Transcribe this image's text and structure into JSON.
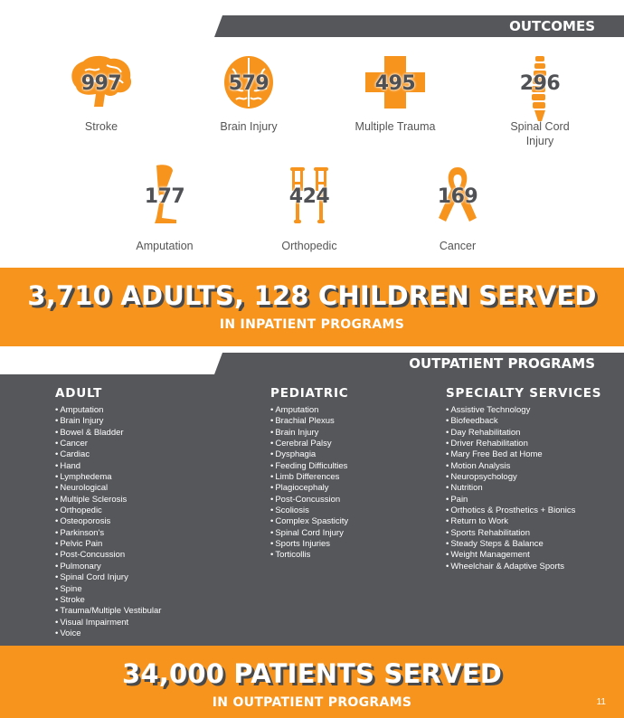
{
  "outcomes_header": "OUTCOMES",
  "outcomes": [
    {
      "number": "997",
      "label": "Stroke",
      "icon": "brain-side-icon"
    },
    {
      "number": "579",
      "label": "Brain Injury",
      "icon": "brain-top-icon"
    },
    {
      "number": "495",
      "label": "Multiple Trauma",
      "icon": "medical-cross-icon"
    },
    {
      "number": "296",
      "label": "Spinal Cord\nInjury",
      "icon": "spine-icon"
    },
    {
      "number": "177",
      "label": "Amputation",
      "icon": "prosthetic-leg-icon"
    },
    {
      "number": "424",
      "label": "Orthopedic",
      "icon": "crutches-icon"
    },
    {
      "number": "169",
      "label": "Cancer",
      "icon": "cancer-ribbon-icon"
    }
  ],
  "inpatient": {
    "headline": "3,710 ADULTS, 128 CHILDREN SERVED",
    "sub": "IN INPATIENT PROGRAMS"
  },
  "outpatient_header": "OUTPATIENT PROGRAMS",
  "adult": {
    "title": "ADULT",
    "items": [
      "Amputation",
      "Brain Injury",
      "Bowel & Bladder",
      "Cancer",
      "Cardiac",
      "Hand",
      "Lymphedema",
      "Neurological",
      "Multiple Sclerosis",
      "Orthopedic",
      "Osteoporosis",
      "Parkinson's",
      "Pelvic Pain",
      "Post-Concussion",
      "Pulmonary",
      "Spinal Cord Injury",
      "Spine",
      "Stroke",
      "Trauma/Multiple Vestibular",
      "Visual Impairment",
      "Voice"
    ]
  },
  "pediatric": {
    "title": "PEDIATRIC",
    "items": [
      "Amputation",
      "Brachial Plexus",
      "Brain Injury",
      "Cerebral Palsy",
      "Dysphagia",
      "Feeding Difficulties",
      "Limb Differences",
      "Plagiocephaly",
      "Post-Concussion",
      "Scoliosis",
      "Complex Spasticity",
      "Spinal Cord Injury",
      "Sports Injuries",
      "Torticollis"
    ]
  },
  "specialty": {
    "title": "SPECIALTY SERVICES",
    "items": [
      "Assistive Technology",
      "Biofeedback",
      "Day Rehabilitation",
      "Driver Rehabilitation",
      "Mary Free Bed at Home",
      "Motion Analysis",
      "Neuropsychology",
      "Nutrition",
      "Pain",
      "Orthotics & Prosthetics + Bionics",
      "Return to Work",
      "Sports Rehabilitation",
      "Steady Steps & Balance",
      "Weight Management",
      "Wheelchair & Adaptive Sports"
    ]
  },
  "outpatient": {
    "headline": "34,000 PATIENTS SERVED",
    "sub": "IN OUTPATIENT PROGRAMS"
  },
  "page_number": "11",
  "colors": {
    "orange": "#f7941d",
    "gray": "#55575b"
  }
}
